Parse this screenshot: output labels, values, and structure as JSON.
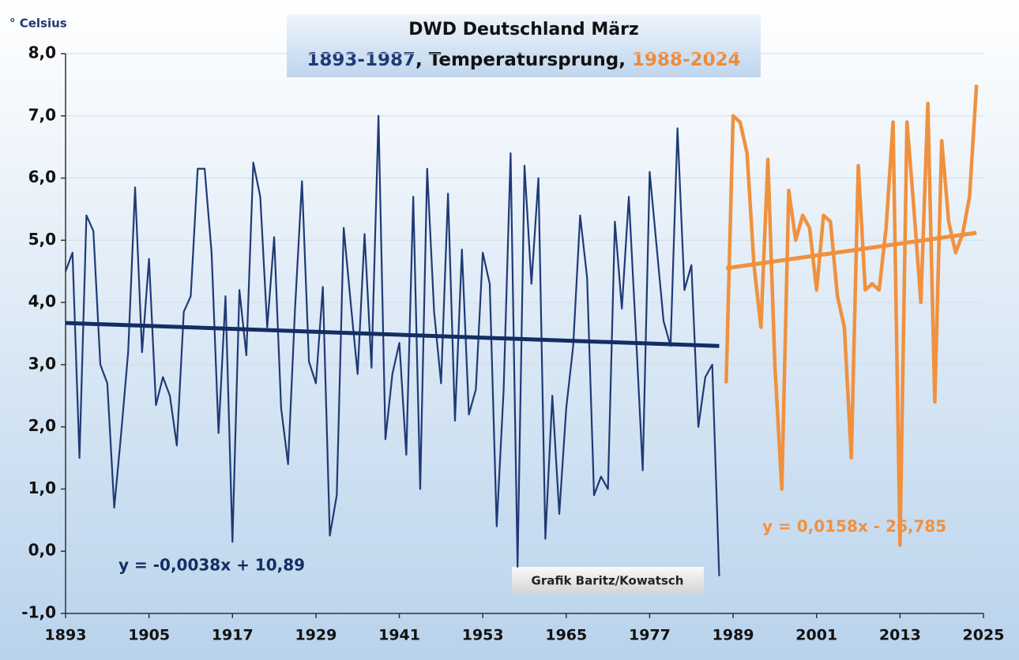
{
  "chart_data": {
    "type": "line",
    "title": "DWD Deutschland März",
    "subtitle_parts": [
      {
        "text": "1893-1987",
        "color": "#1f3a75"
      },
      {
        "text": ", Temperatursprung, ",
        "color": "#111111"
      },
      {
        "text": "1988-2024",
        "color": "#ee8a3c"
      }
    ],
    "ylabel": "° Celsius",
    "source": "Grafik Baritz/Kowatsch",
    "xlim": [
      1893,
      2025
    ],
    "xticks": [
      1893,
      1905,
      1917,
      1929,
      1941,
      1953,
      1965,
      1977,
      1989,
      2001,
      2013,
      2025
    ],
    "ylim": [
      -1,
      8
    ],
    "yticks": [
      {
        "value": -1,
        "label": "-1,0"
      },
      {
        "value": 0,
        "label": "0,0"
      },
      {
        "value": 1,
        "label": "1,0"
      },
      {
        "value": 2,
        "label": "2,0"
      },
      {
        "value": 3,
        "label": "3,0"
      },
      {
        "value": 4,
        "label": "4,0"
      },
      {
        "value": 5,
        "label": "5,0"
      },
      {
        "value": 6,
        "label": "6,0"
      },
      {
        "value": 7,
        "label": "7,0"
      },
      {
        "value": 8,
        "label": "8,0"
      }
    ],
    "grid": true,
    "series": [
      {
        "color": "#1f3a75",
        "x": [
          1893,
          1894,
          1895,
          1896,
          1897,
          1898,
          1899,
          1900,
          1901,
          1902,
          1903,
          1904,
          1905,
          1906,
          1907,
          1908,
          1909,
          1910,
          1911,
          1912,
          1913,
          1914,
          1915,
          1916,
          1917,
          1918,
          1919,
          1920,
          1921,
          1922,
          1923,
          1924,
          1925,
          1926,
          1927,
          1928,
          1929,
          1930,
          1931,
          1932,
          1933,
          1934,
          1935,
          1936,
          1937,
          1938,
          1939,
          1940,
          1941,
          1942,
          1943,
          1944,
          1945,
          1946,
          1947,
          1948,
          1949,
          1950,
          1951,
          1952,
          1953,
          1954,
          1955,
          1956,
          1957,
          1958,
          1959,
          1960,
          1961,
          1962,
          1963,
          1964,
          1965,
          1966,
          1967,
          1968,
          1969,
          1970,
          1971,
          1972,
          1973,
          1974,
          1975,
          1976,
          1977,
          1978,
          1979,
          1980,
          1981,
          1982,
          1983,
          1984,
          1985,
          1986,
          1987
        ],
        "values": [
          4.5,
          4.8,
          1.5,
          5.4,
          5.15,
          3.0,
          2.7,
          0.7,
          1.9,
          3.2,
          5.85,
          3.2,
          4.7,
          2.35,
          2.8,
          2.5,
          1.7,
          3.85,
          4.1,
          6.15,
          6.15,
          4.8,
          1.9,
          4.1,
          0.15,
          4.2,
          3.15,
          6.25,
          5.7,
          3.6,
          5.05,
          2.3,
          1.4,
          3.9,
          5.95,
          3.05,
          2.7,
          4.25,
          0.25,
          0.9,
          5.2,
          4.0,
          2.85,
          5.1,
          2.95,
          7.0,
          1.8,
          2.85,
          3.35,
          1.55,
          5.7,
          1.0,
          6.15,
          3.85,
          2.7,
          5.75,
          2.1,
          4.85,
          2.2,
          2.6,
          4.8,
          4.3,
          0.4,
          2.6,
          6.4,
          -0.25,
          6.2,
          4.3,
          6.0,
          0.2,
          2.5,
          0.6,
          2.3,
          3.3,
          5.4,
          4.4,
          0.9,
          1.2,
          1.0,
          5.3,
          3.9,
          5.7,
          3.55,
          1.3,
          6.1,
          4.9,
          3.7,
          3.3,
          6.8,
          4.2,
          4.6,
          2.0,
          2.8,
          3.0,
          -0.4
        ]
      },
      {
        "color": "#f0913e",
        "x": [
          1988,
          1989,
          1990,
          1991,
          1992,
          1993,
          1994,
          1995,
          1996,
          1997,
          1998,
          1999,
          2000,
          2001,
          2002,
          2003,
          2004,
          2005,
          2006,
          2007,
          2008,
          2009,
          2010,
          2011,
          2012,
          2013,
          2014,
          2015,
          2016,
          2017,
          2018,
          2019,
          2020,
          2021,
          2022,
          2023,
          2024
        ],
        "values": [
          2.7,
          7.0,
          6.9,
          6.4,
          4.6,
          3.6,
          6.3,
          3.0,
          1.0,
          5.8,
          5.0,
          5.4,
          5.2,
          4.2,
          5.4,
          5.3,
          4.1,
          3.6,
          1.5,
          6.2,
          4.2,
          4.3,
          4.2,
          5.2,
          6.9,
          0.1,
          6.9,
          5.5,
          4.0,
          7.2,
          2.4,
          6.6,
          5.3,
          4.8,
          5.1,
          5.7,
          7.5
        ]
      }
    ],
    "trendlines": [
      {
        "color": "#142e63",
        "x": [
          1893,
          1987
        ],
        "values": [
          3.67,
          3.3
        ],
        "label": "y = -0,0038x + 10,89"
      },
      {
        "color": "#f0913e",
        "x": [
          1988,
          2024
        ],
        "values": [
          4.55,
          5.12
        ],
        "label": "y = 0,0158x - 26,785"
      }
    ]
  }
}
